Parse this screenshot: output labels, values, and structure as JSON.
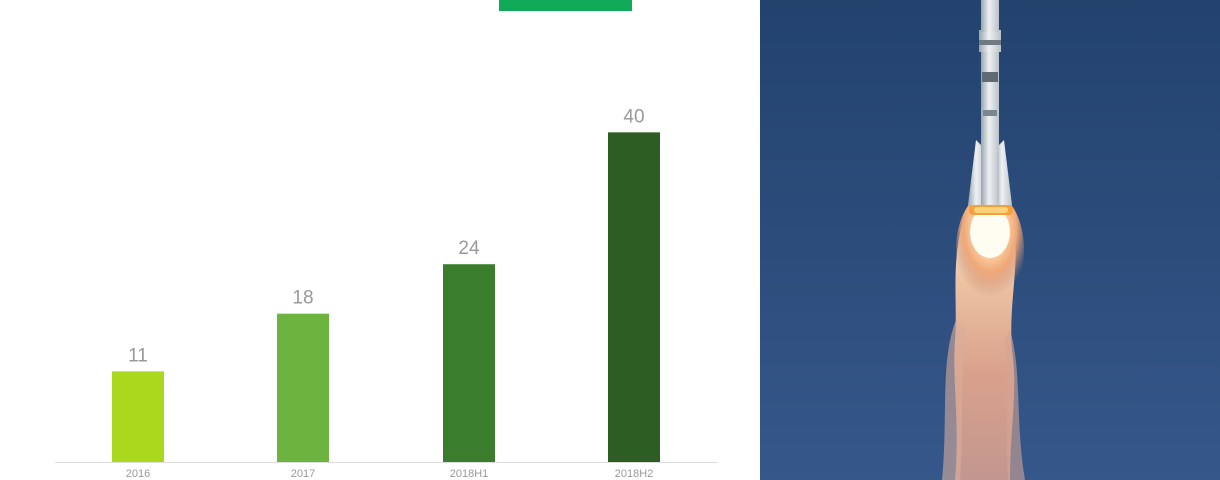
{
  "chart_data": {
    "type": "bar",
    "categories": [
      "2016",
      "2017",
      "2018H1",
      "2018H2"
    ],
    "values": [
      11,
      18,
      24,
      40
    ],
    "data_labels": [
      "11",
      "18",
      "24",
      "40"
    ],
    "ylim": [
      0,
      41.5
    ],
    "grid": false,
    "colors": [
      "#a9d81d",
      "#6db33f",
      "#3a7d2c",
      "#2d5d22"
    ],
    "title": "",
    "xlabel": "",
    "ylabel": ""
  },
  "theme": {
    "accent": "#0fa957",
    "label_color": "#999999",
    "axis_color": "#dddddd"
  },
  "photo": {
    "icon": "rocket-launch-photo",
    "sky_color": "#2b4b7a"
  }
}
